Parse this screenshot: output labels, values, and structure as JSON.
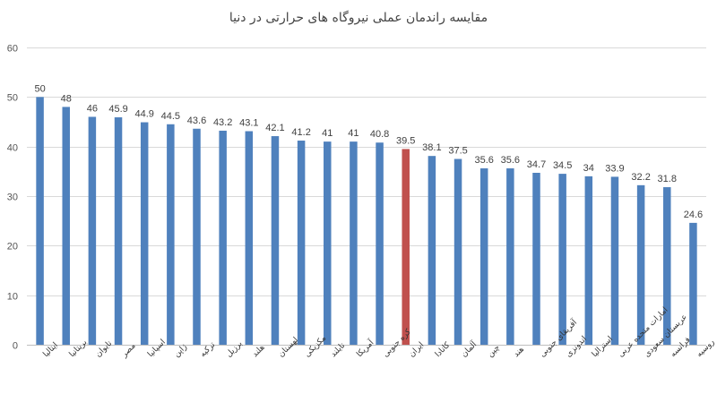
{
  "chart_data": {
    "type": "bar",
    "title": "مقایسه راندمان عملی نیروگاه های حرارتی در دنیا",
    "xlabel": "",
    "ylabel": "",
    "ylim": [
      0,
      60
    ],
    "yticks": [
      0,
      10,
      20,
      30,
      40,
      50,
      60
    ],
    "grid": true,
    "legend": "none",
    "categories": [
      "ایتالیا",
      "بریتانیا",
      "تایوان",
      "مصر",
      "اسپانیا",
      "ژاپن",
      "ترکیه",
      "برزیل",
      "هلند",
      "لهستان",
      "مکزیکی",
      "تایلند",
      "آمریکا",
      "کره جنوبی",
      "ایران",
      "کانادا",
      "آلمان",
      "چین",
      "هند",
      "آفریقای جنوبی",
      "اندونزی",
      "استرالیا",
      "امارات متحده عربی",
      "عربستان سعودی",
      "فرانسه",
      "روسیه"
    ],
    "values": [
      50,
      48,
      46,
      45.9,
      44.9,
      44.5,
      43.6,
      43.2,
      43.1,
      42.1,
      41.2,
      41,
      41,
      40.8,
      39.5,
      38.1,
      37.5,
      35.6,
      35.6,
      34.7,
      34.5,
      34,
      33.9,
      32.2,
      31.8,
      24.6
    ],
    "value_labels": [
      "50",
      "48",
      "46",
      "45.9",
      "44.9",
      "44.5",
      "43.6",
      "43.2",
      "43.1",
      "42.1",
      "41.2",
      "41",
      "41",
      "40.8",
      "39.5",
      "38.1",
      "37.5",
      "35.6",
      "35.6",
      "34.7",
      "34.5",
      "34",
      "33.9",
      "32.2",
      "31.8",
      "24.6"
    ],
    "highlight_category": "ایران",
    "colors": {
      "bar": "#4f81bd",
      "highlight": "#c0504d",
      "grid": "#d9d9d9"
    }
  }
}
